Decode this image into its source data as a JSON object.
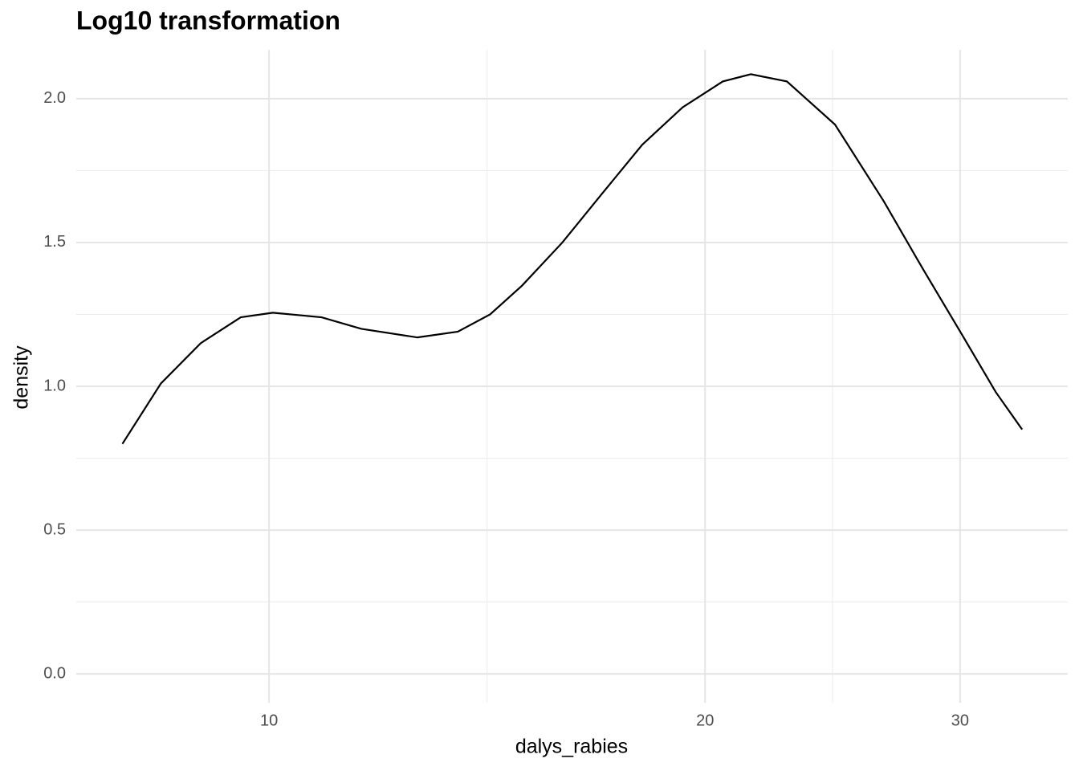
{
  "chart_data": {
    "type": "line",
    "title": "Log10 transformation",
    "x_label": "dalys_rabies",
    "y_label": "density",
    "x": [
      7.92,
      8.42,
      8.97,
      9.56,
      10.06,
      10.87,
      11.58,
      12.66,
      13.5,
      14.21,
      14.95,
      15.94,
      16.98,
      18.1,
      19.3,
      20.57,
      21.51,
      22.78,
      24.59,
      26.56,
      28.3,
      30.17,
      31.75,
      33.11
    ],
    "values": [
      0.8,
      1.01,
      1.15,
      1.24,
      1.256,
      1.24,
      1.2,
      1.17,
      1.19,
      1.25,
      1.35,
      1.5,
      1.67,
      1.84,
      1.97,
      2.06,
      2.085,
      2.06,
      1.91,
      1.645,
      1.405,
      1.17,
      0.98,
      0.85
    ],
    "color": "#000000",
    "x_log": true,
    "xlim": [
      7.36,
      35.6
    ],
    "xticks": [
      10,
      20,
      30
    ],
    "ylim": [
      -0.1,
      2.17
    ],
    "yticks": [
      {
        "value": 0,
        "label": "0.0"
      },
      0.5,
      {
        "value": 1,
        "label": "1.0"
      },
      1.5,
      {
        "value": 2,
        "label": "2.0"
      }
    ],
    "grid": true
  }
}
